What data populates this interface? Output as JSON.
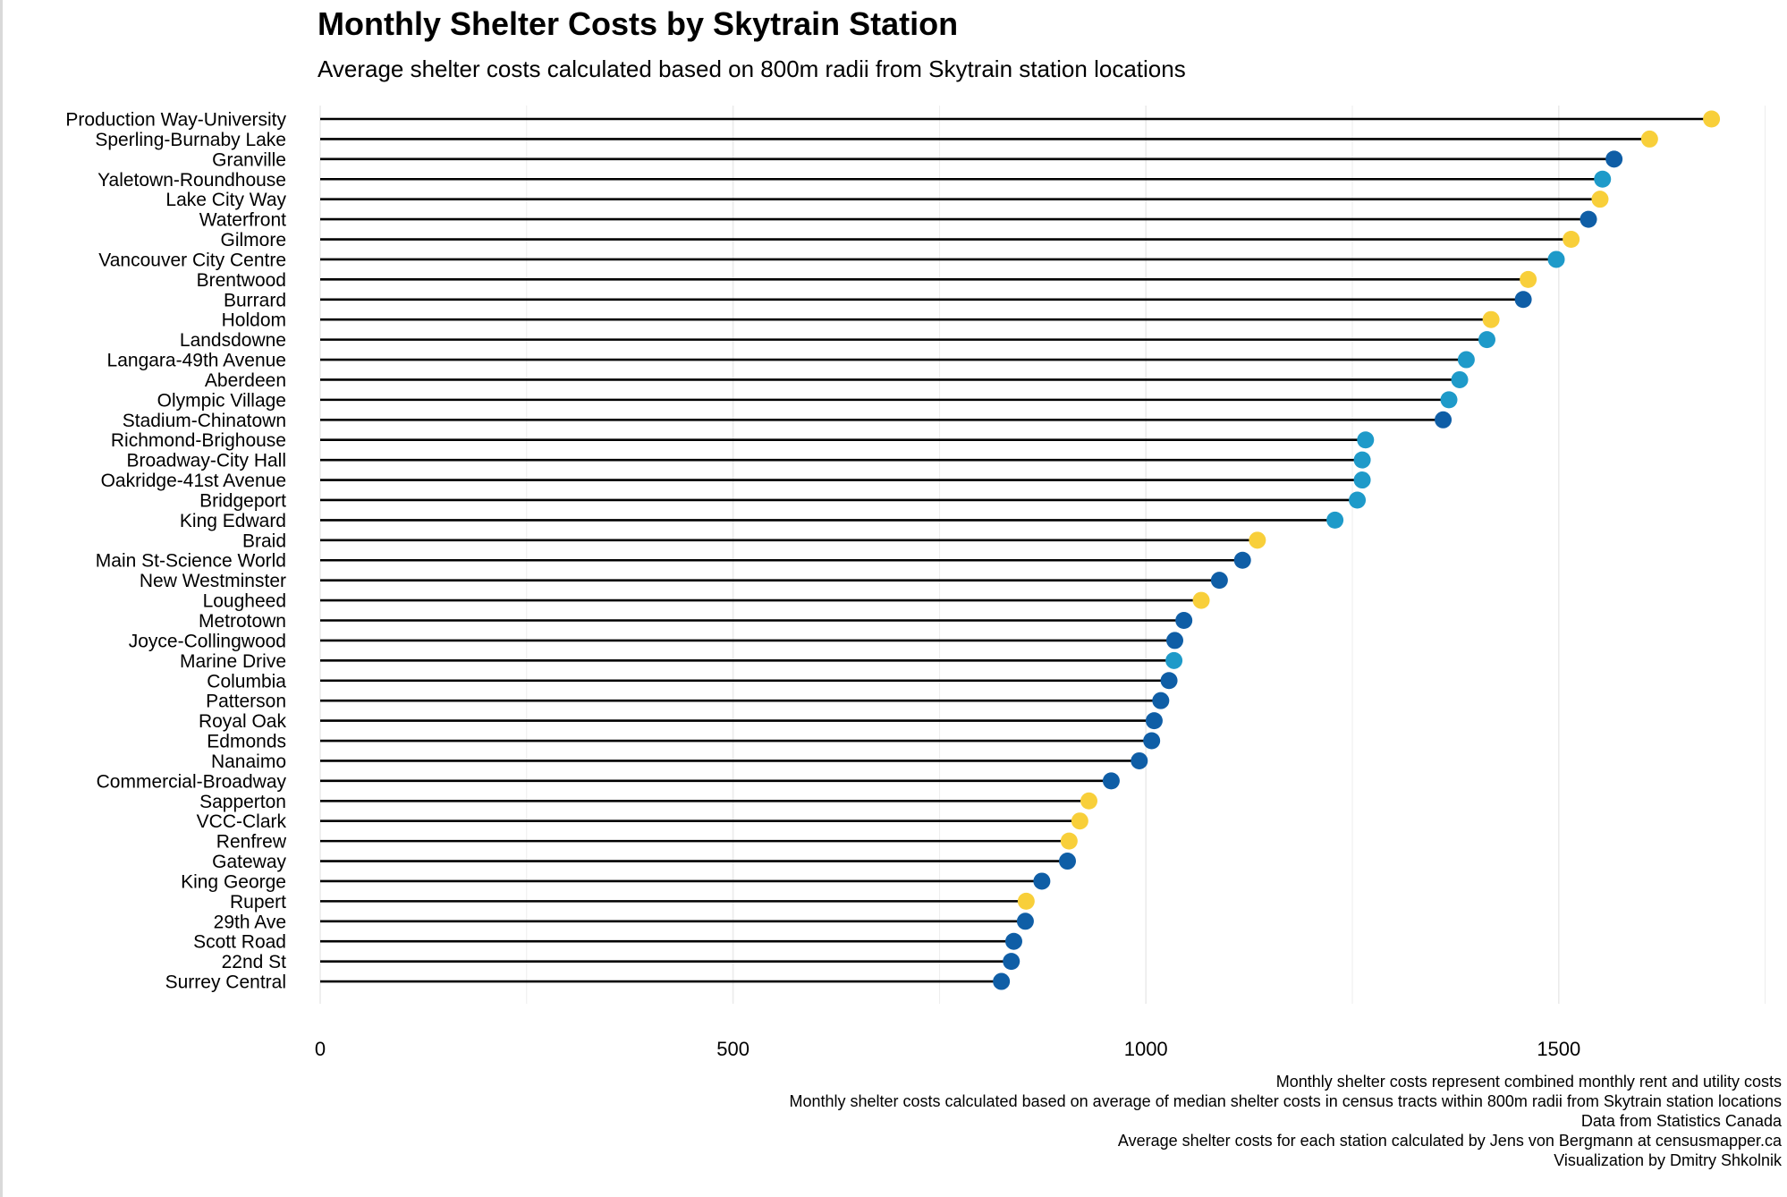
{
  "chart_data": {
    "type": "lollipop",
    "title": "Monthly Shelter Costs by Skytrain Station",
    "subtitle": "Average shelter costs calculated based on 800m radii from Skytrain station locations",
    "xlabel": "",
    "ylabel": "",
    "xlim": [
      0,
      1750
    ],
    "x_ticks": [
      0,
      500,
      1000,
      1500
    ],
    "grid": "vertical",
    "legend": "none",
    "colors": {
      "yellow": "#F8CF3A",
      "light_blue": "#1E9AC9",
      "dark_blue": "#0F5EA6",
      "stem": "#000000",
      "grid": "#ebebeb"
    },
    "points": [
      {
        "station": "Production Way-University",
        "value": 1685,
        "color": "yellow"
      },
      {
        "station": "Sperling-Burnaby Lake",
        "value": 1610,
        "color": "yellow"
      },
      {
        "station": "Granville",
        "value": 1567,
        "color": "dark_blue"
      },
      {
        "station": "Yaletown-Roundhouse",
        "value": 1553,
        "color": "light_blue"
      },
      {
        "station": "Lake City Way",
        "value": 1550,
        "color": "yellow"
      },
      {
        "station": "Waterfront",
        "value": 1536,
        "color": "dark_blue"
      },
      {
        "station": "Gilmore",
        "value": 1515,
        "color": "yellow"
      },
      {
        "station": "Vancouver City Centre",
        "value": 1497,
        "color": "light_blue"
      },
      {
        "station": "Brentwood",
        "value": 1463,
        "color": "yellow"
      },
      {
        "station": "Burrard",
        "value": 1457,
        "color": "dark_blue"
      },
      {
        "station": "Holdom",
        "value": 1418,
        "color": "yellow"
      },
      {
        "station": "Landsdowne",
        "value": 1413,
        "color": "light_blue"
      },
      {
        "station": "Langara-49th Avenue",
        "value": 1388,
        "color": "light_blue"
      },
      {
        "station": "Aberdeen",
        "value": 1380,
        "color": "light_blue"
      },
      {
        "station": "Olympic Village",
        "value": 1367,
        "color": "light_blue"
      },
      {
        "station": "Stadium-Chinatown",
        "value": 1360,
        "color": "dark_blue"
      },
      {
        "station": "Richmond-Brighouse",
        "value": 1266,
        "color": "light_blue"
      },
      {
        "station": "Broadway-City Hall",
        "value": 1262,
        "color": "light_blue"
      },
      {
        "station": "Oakridge-41st Avenue",
        "value": 1262,
        "color": "light_blue"
      },
      {
        "station": "Bridgeport",
        "value": 1256,
        "color": "light_blue"
      },
      {
        "station": "King Edward",
        "value": 1229,
        "color": "light_blue"
      },
      {
        "station": "Braid",
        "value": 1135,
        "color": "yellow"
      },
      {
        "station": "Main St-Science World",
        "value": 1117,
        "color": "dark_blue"
      },
      {
        "station": "New Westminster",
        "value": 1089,
        "color": "dark_blue"
      },
      {
        "station": "Lougheed",
        "value": 1067,
        "color": "yellow"
      },
      {
        "station": "Metrotown",
        "value": 1046,
        "color": "dark_blue"
      },
      {
        "station": "Joyce-Collingwood",
        "value": 1035,
        "color": "dark_blue"
      },
      {
        "station": "Marine Drive",
        "value": 1034,
        "color": "light_blue"
      },
      {
        "station": "Columbia",
        "value": 1028,
        "color": "dark_blue"
      },
      {
        "station": "Patterson",
        "value": 1018,
        "color": "dark_blue"
      },
      {
        "station": "Royal Oak",
        "value": 1010,
        "color": "dark_blue"
      },
      {
        "station": "Edmonds",
        "value": 1007,
        "color": "dark_blue"
      },
      {
        "station": "Nanaimo",
        "value": 992,
        "color": "dark_blue"
      },
      {
        "station": "Commercial-Broadway",
        "value": 958,
        "color": "dark_blue"
      },
      {
        "station": "Sapperton",
        "value": 931,
        "color": "yellow"
      },
      {
        "station": "VCC-Clark",
        "value": 920,
        "color": "yellow"
      },
      {
        "station": "Renfrew",
        "value": 907,
        "color": "yellow"
      },
      {
        "station": "Gateway",
        "value": 905,
        "color": "dark_blue"
      },
      {
        "station": "King George",
        "value": 874,
        "color": "dark_blue"
      },
      {
        "station": "Rupert",
        "value": 855,
        "color": "yellow"
      },
      {
        "station": "29th Ave",
        "value": 854,
        "color": "dark_blue"
      },
      {
        "station": "Scott Road",
        "value": 840,
        "color": "dark_blue"
      },
      {
        "station": "22nd St",
        "value": 837,
        "color": "dark_blue"
      },
      {
        "station": "Surrey Central",
        "value": 825,
        "color": "dark_blue"
      }
    ],
    "caption": [
      "Monthly shelter costs represent combined monthly rent and utility costs",
      "Monthly shelter costs calculated based on average of median shelter costs in census tracts within 800m radii from Skytrain station locations",
      "Data from Statistics Canada",
      "Average shelter costs for each station calculated by Jens von Bergmann at censusmapper.ca",
      "Visualization by Dmitry Shkolnik"
    ]
  }
}
